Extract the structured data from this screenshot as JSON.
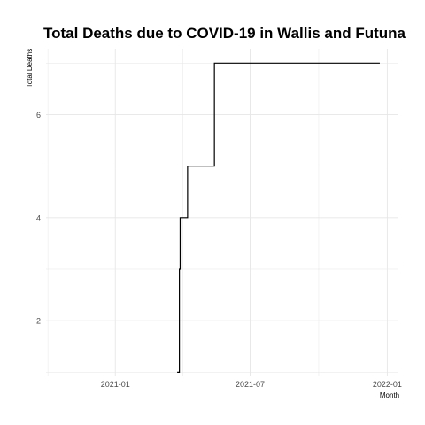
{
  "chart_data": {
    "type": "line",
    "line_shape": "step",
    "title": "Total Deaths due to COVID-19 in Wallis and Futuna",
    "xlabel": "Month",
    "ylabel": "Total Deaths",
    "x_ticks": [
      "2021-01",
      "2021-07",
      "2022-01"
    ],
    "y_ticks": [
      2,
      4,
      6
    ],
    "xlim": [
      "2020-09-30",
      "2022-01-16"
    ],
    "ylim": [
      0.92,
      7.28
    ],
    "grid": true,
    "legend": "none",
    "series": [
      {
        "x": [
          "2021-03-25",
          "2021-03-28",
          "2021-03-29",
          "2021-04-08",
          "2021-04-16",
          "2021-05-14",
          "2021-12-22"
        ],
        "y": [
          1,
          3,
          4,
          5,
          5,
          7,
          7
        ]
      }
    ],
    "colors": {
      "line": "#000000",
      "grid": "#e6e6e6",
      "text": "#4d4d4d"
    }
  }
}
